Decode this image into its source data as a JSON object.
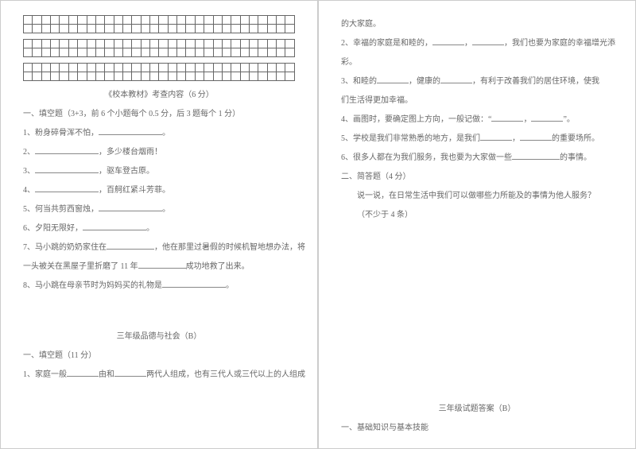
{
  "grid": {
    "cols": 30,
    "bands": 3,
    "rowsPerBand": 2
  },
  "left": {
    "header": "《校本教材》考查内容（6 分）",
    "sec1": "一、填空题（3+3，前 6 个小题每个 0.5 分，后 3 题每个 1 分）",
    "q1": "1、粉身碎骨浑不怕，",
    "q1b": "。",
    "q2a": "2、",
    "q2b": "，多少楼台烟雨！",
    "q3a": "3、",
    "q3b": "，驱车登古原。",
    "q4a": "4、",
    "q4b": "，百舸红紧斗芳菲。",
    "q5": "5、何当共剪西窗烛，",
    "q5b": "。",
    "q6": "6、夕阳无限好，",
    "q6b": "。",
    "q7a": "7、马小跳的奶奶家住在",
    "q7b": "，他在那里过暑假的时候机智地想办法，将",
    "q7c": "一头被关在黑屋子里折磨了 11 年",
    "q7d": "成功地救了出来。",
    "q8a": "8、马小跳在母亲节时为妈妈买的礼物是",
    "q8b": "。",
    "title2": "三年级品德与社会（B）",
    "sec2": "一、填空题（11 分）",
    "r1a": "1、家庭一般",
    "r1b": "由和",
    "r1c": "两代人组成，也有三代人或三代以上的人组成"
  },
  "right": {
    "r1": "的大家庭。",
    "r2a": "2、幸福的家庭是和睦的，",
    "r2b": "，",
    "r2c": "，我们也要为家庭的幸福增光添",
    "r2d": "彩。",
    "r3a": "3、和睦的",
    "r3b": "，健康的",
    "r3c": "，有利于改善我们的居住环境，使我",
    "r3d": "们生活得更加幸福。",
    "r4a": "4、画图时，要确定图上方向，一般记做：“",
    "r4b": "，",
    "r4c": "”。",
    "r5a": "5、学校是我们非常熟悉的地方，是我们",
    "r5b": "，",
    "r5c": "的重要场所。",
    "r6a": "6、很多人都在为我们服务，我也要为大家做一些",
    "r6b": "的事情。",
    "sec2": "二、简答题（4 分）",
    "q": "说一说，在日常生活中我们可以做哪些力所能及的事情为他人服务？",
    "q2": "（不少于 4 条）",
    "title3": "三年级试题答案（B）",
    "sec3": "一、基础知识与基本技能"
  }
}
